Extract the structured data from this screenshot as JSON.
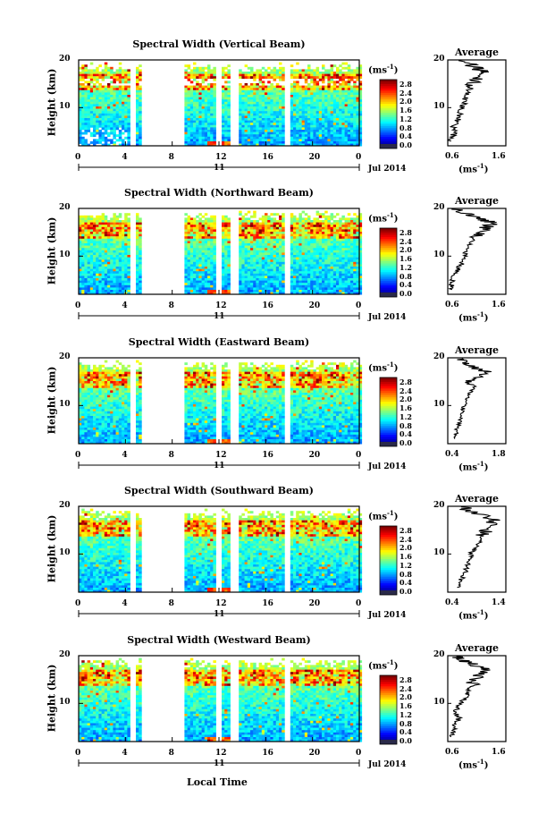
{
  "panels": [
    {
      "title": "Spectral Width (Vertical Beam)",
      "avg_ticks": [
        "0.6",
        "1.6"
      ],
      "profile": [
        [
          0.62,
          3
        ],
        [
          0.66,
          4
        ],
        [
          0.7,
          5
        ],
        [
          0.68,
          6
        ],
        [
          0.74,
          7
        ],
        [
          0.8,
          8
        ],
        [
          0.82,
          9
        ],
        [
          0.86,
          10
        ],
        [
          0.9,
          11
        ],
        [
          0.92,
          12
        ],
        [
          0.96,
          13
        ],
        [
          1.02,
          14
        ],
        [
          1.06,
          15
        ],
        [
          1.16,
          16
        ],
        [
          1.26,
          17
        ],
        [
          1.3,
          17.5
        ],
        [
          1.2,
          18
        ],
        [
          1.1,
          18.6
        ],
        [
          1.0,
          19.2
        ],
        [
          0.8,
          20
        ]
      ]
    },
    {
      "title": "Spectral Width (Northward Beam)",
      "avg_ticks": [
        "0.6",
        "1.6"
      ],
      "profile": [
        [
          0.62,
          3
        ],
        [
          0.64,
          4
        ],
        [
          0.66,
          5
        ],
        [
          0.7,
          6
        ],
        [
          0.76,
          7
        ],
        [
          0.82,
          8
        ],
        [
          0.88,
          9
        ],
        [
          0.9,
          10
        ],
        [
          0.94,
          11
        ],
        [
          0.98,
          12
        ],
        [
          1.02,
          13
        ],
        [
          1.1,
          14
        ],
        [
          1.22,
          15
        ],
        [
          1.34,
          16
        ],
        [
          1.5,
          17
        ],
        [
          1.3,
          17.6
        ],
        [
          1.1,
          18.2
        ],
        [
          0.9,
          19
        ],
        [
          0.7,
          20
        ]
      ]
    },
    {
      "title": "Spectral Width (Eastward Beam)",
      "avg_ticks": [
        "0.4",
        "1.8"
      ],
      "profile": [
        [
          0.55,
          3
        ],
        [
          0.6,
          4
        ],
        [
          0.6,
          5
        ],
        [
          0.66,
          6
        ],
        [
          0.7,
          7
        ],
        [
          0.74,
          8
        ],
        [
          0.78,
          9
        ],
        [
          0.82,
          10
        ],
        [
          0.86,
          11
        ],
        [
          0.92,
          12
        ],
        [
          1.0,
          13
        ],
        [
          1.1,
          14
        ],
        [
          0.9,
          15
        ],
        [
          1.2,
          16
        ],
        [
          1.5,
          17
        ],
        [
          1.2,
          17.6
        ],
        [
          1.0,
          18.4
        ],
        [
          0.8,
          19.2
        ],
        [
          0.6,
          20
        ]
      ]
    },
    {
      "title": "Spectral Width (Southward Beam)",
      "avg_ticks": [
        "0.4",
        "1.4"
      ],
      "profile": [
        [
          0.55,
          3
        ],
        [
          0.6,
          4
        ],
        [
          0.66,
          5
        ],
        [
          0.7,
          6
        ],
        [
          0.74,
          7
        ],
        [
          0.78,
          8
        ],
        [
          0.8,
          9
        ],
        [
          0.84,
          10
        ],
        [
          0.9,
          11
        ],
        [
          0.96,
          12
        ],
        [
          1.02,
          13
        ],
        [
          1.08,
          14
        ],
        [
          1.14,
          15
        ],
        [
          1.22,
          16
        ],
        [
          1.32,
          17
        ],
        [
          1.2,
          17.6
        ],
        [
          1.0,
          18.4
        ],
        [
          0.8,
          19.2
        ],
        [
          0.6,
          20
        ]
      ]
    },
    {
      "title": "Spectral Width (Westward Beam)",
      "avg_ticks": [
        "0.6",
        "1.6"
      ],
      "profile": [
        [
          0.62,
          3
        ],
        [
          0.66,
          4
        ],
        [
          0.7,
          5
        ],
        [
          0.74,
          6
        ],
        [
          0.8,
          7
        ],
        [
          0.7,
          8
        ],
        [
          0.76,
          9
        ],
        [
          0.84,
          10
        ],
        [
          0.9,
          11
        ],
        [
          0.96,
          12
        ],
        [
          1.0,
          13
        ],
        [
          1.06,
          14
        ],
        [
          1.14,
          15
        ],
        [
          1.2,
          16
        ],
        [
          1.4,
          17
        ],
        [
          1.2,
          17.6
        ],
        [
          1.0,
          18.4
        ],
        [
          0.8,
          19.2
        ],
        [
          0.7,
          20
        ]
      ]
    }
  ],
  "common": {
    "avg_title": "Average",
    "ylabel": "Height (km)",
    "yticks": [
      "10",
      "20"
    ],
    "xticks": [
      "0",
      "4",
      "8",
      "12",
      "16",
      "20",
      "0"
    ],
    "day_label": "11",
    "date_label": "Jul 2014",
    "unit": "(ms",
    "unit_exp": "-1",
    "unit_close": ")",
    "avg_unit": "(ms",
    "avg_unit_exp": "-1",
    "avg_unit_close": ")",
    "colorbar_ticks": [
      "2.8",
      "2.4",
      "2.0",
      "1.6",
      "1.2",
      "0.8",
      "0.4",
      "0.0"
    ],
    "xlabel": "Local Time"
  },
  "chart_data": {
    "type": "heatmap",
    "title": "Spectral Width",
    "xlabel": "Local Time",
    "ylabel": "Height (km)",
    "x_range": [
      0,
      24
    ],
    "y_range": [
      2,
      20
    ],
    "color_range": [
      0.0,
      3.0
    ],
    "colorbar_ticks": [
      0.0,
      0.4,
      0.8,
      1.2,
      1.6,
      2.0,
      2.4,
      2.8
    ],
    "data_gaps_hours": [
      [
        4.3,
        4.7
      ],
      [
        5.2,
        8.9
      ],
      [
        11.6,
        12.1
      ],
      [
        12.8,
        13.6
      ],
      [
        17.6,
        17.9
      ]
    ],
    "date": "11 Jul 2014",
    "series": [
      {
        "name": "Vertical Beam",
        "avg_xlim": [
          0.6,
          1.6
        ]
      },
      {
        "name": "Northward Beam",
        "avg_xlim": [
          0.6,
          1.6
        ]
      },
      {
        "name": "Eastward Beam",
        "avg_xlim": [
          0.4,
          1.8
        ]
      },
      {
        "name": "Southward Beam",
        "avg_xlim": [
          0.4,
          1.4
        ]
      },
      {
        "name": "Westward Beam",
        "avg_xlim": [
          0.6,
          1.6
        ]
      }
    ]
  }
}
